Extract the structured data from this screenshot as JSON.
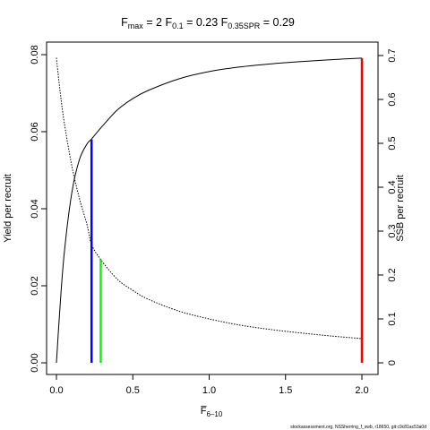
{
  "chart_data": {
    "type": "line",
    "title_parts": [
      {
        "main": "F",
        "sub": "max",
        "eq": "= 2"
      },
      {
        "main": "F",
        "sub": "0.1",
        "eq": "= 0.23"
      },
      {
        "main": "F",
        "sub": "0.35SPR",
        "eq": "= 0.29"
      }
    ],
    "xlabel": {
      "main": "F̅",
      "sub": "6–10"
    },
    "ylabel_left": "Yield per recruit",
    "ylabel_right": "SSB per recruit",
    "xlim": [
      0,
      2
    ],
    "ylim_left": [
      0,
      0.08
    ],
    "ylim_right": [
      0,
      0.7
    ],
    "x_ticks": [
      0,
      0.5,
      1,
      1.5,
      2
    ],
    "x_tick_labels": [
      "0.0",
      "0.5",
      "1.0",
      "1.5",
      "2.0"
    ],
    "y_left_ticks": [
      0,
      0.02,
      0.04,
      0.06,
      0.08
    ],
    "y_left_tick_labels": [
      "0.00",
      "0.02",
      "0.04",
      "0.06",
      "0.08"
    ],
    "y_right_ticks": [
      0,
      0.1,
      0.2,
      0.3,
      0.4,
      0.5,
      0.6,
      0.7
    ],
    "y_right_tick_labels": [
      "0",
      "0.1",
      "0.2",
      "0.3",
      "0.4",
      "0.5",
      "0.6",
      "0.7"
    ],
    "series": [
      {
        "name": "Yield per recruit",
        "axis": "left",
        "style": "solid",
        "color": "#000000",
        "x": [
          0,
          0.02,
          0.05,
          0.1,
          0.15,
          0.2,
          0.23,
          0.3,
          0.4,
          0.5,
          0.6,
          0.8,
          1.0,
          1.2,
          1.4,
          1.6,
          1.8,
          2.0
        ],
        "y": [
          0,
          0.0125,
          0.028,
          0.044,
          0.0527,
          0.0568,
          0.0581,
          0.0614,
          0.0657,
          0.0686,
          0.0707,
          0.0737,
          0.0756,
          0.0768,
          0.0776,
          0.0782,
          0.0787,
          0.0791
        ]
      },
      {
        "name": "SSB per recruit",
        "axis": "right",
        "style": "dotted",
        "color": "#000000",
        "x": [
          0,
          0.02,
          0.05,
          0.1,
          0.15,
          0.2,
          0.23,
          0.29,
          0.4,
          0.5,
          0.6,
          0.8,
          1.0,
          1.2,
          1.4,
          1.6,
          1.8,
          2.0
        ],
        "y": [
          0.695,
          0.63,
          0.55,
          0.45,
          0.375,
          0.315,
          0.27,
          0.235,
          0.19,
          0.165,
          0.145,
          0.118,
          0.1,
          0.086,
          0.076,
          0.068,
          0.061,
          0.055
        ]
      }
    ],
    "reference_lines": [
      {
        "x": 0.23,
        "axis": "left",
        "y_top": 0.058,
        "color": "#0000ff"
      },
      {
        "x": 0.29,
        "axis": "right",
        "y_top": 0.235,
        "color": "#00ff00"
      },
      {
        "x": 2.0,
        "axis": "left",
        "y_top": 0.0791,
        "color": "#ff0000"
      }
    ],
    "footer_note": "stockassessment.org, NSSherring_f_swb, r18650, git:c9c81ac53a0d"
  }
}
